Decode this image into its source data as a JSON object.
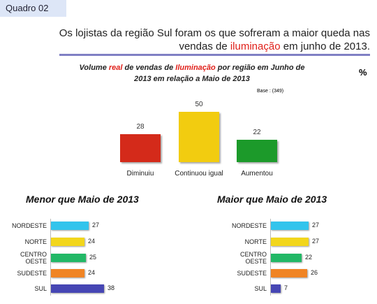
{
  "label": "Quadro 02",
  "headline": {
    "before": "Os lojistas da região Sul foram os que sofreram a maior queda nas vendas de ",
    "highlight": "iluminação",
    "after": " em junho de 2013."
  },
  "chart_data": [
    {
      "type": "bar",
      "title_parts": [
        "Volume ",
        "real",
        " de vendas de ",
        "Iluminação",
        " por região em Junho de 2013 em relação a Maio de 2013"
      ],
      "unit": "%",
      "note": "Base : (349)",
      "categories": [
        "Diminuiu",
        "Continuou igual",
        "Aumentou"
      ],
      "values": [
        28,
        50,
        22
      ],
      "colors": [
        "#d42a1a",
        "#f2cc10",
        "#1c9a2a"
      ]
    },
    {
      "type": "hbar",
      "title": "Menor que Maio de 2013",
      "categories": [
        "NORDESTE",
        "NORTE",
        "CENTRO OESTE",
        "SUDESTE",
        "SUL"
      ],
      "values": [
        27,
        24,
        25,
        24,
        38
      ],
      "colors": [
        "#33c4ec",
        "#f2d61c",
        "#22b866",
        "#f08424",
        "#4646b4"
      ]
    },
    {
      "type": "hbar",
      "title": "Maior que  Maio de 2013",
      "categories": [
        "NORDESTE",
        "NORTE",
        "CENTRO OESTE",
        "SUDESTE",
        "SUL"
      ],
      "values": [
        27,
        27,
        22,
        26,
        7
      ],
      "colors": [
        "#33c4ec",
        "#f2d61c",
        "#22b866",
        "#f08424",
        "#4646b4"
      ]
    }
  ]
}
